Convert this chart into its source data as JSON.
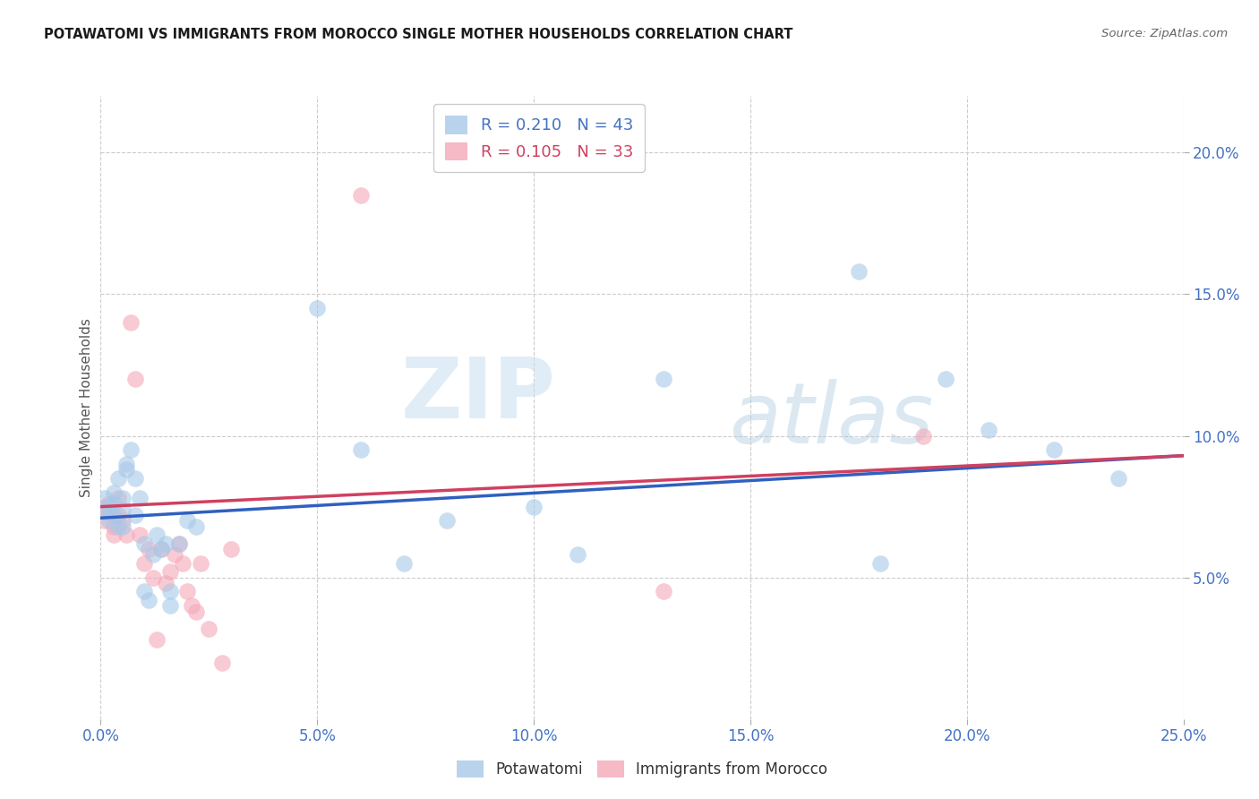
{
  "title": "POTAWATOMI VS IMMIGRANTS FROM MOROCCO SINGLE MOTHER HOUSEHOLDS CORRELATION CHART",
  "source": "Source: ZipAtlas.com",
  "ylabel_label": "Single Mother Households",
  "xlim": [
    0.0,
    0.25
  ],
  "ylim": [
    0.0,
    0.22
  ],
  "xticks": [
    0.0,
    0.05,
    0.1,
    0.15,
    0.2,
    0.25
  ],
  "yticks": [
    0.05,
    0.1,
    0.15,
    0.2
  ],
  "ytick_labels": [
    "5.0%",
    "10.0%",
    "15.0%",
    "20.0%"
  ],
  "xtick_labels": [
    "0.0%",
    "5.0%",
    "10.0%",
    "15.0%",
    "20.0%",
    "25.0%"
  ],
  "legend1_R": "0.210",
  "legend1_N": "43",
  "legend2_R": "0.105",
  "legend2_N": "33",
  "blue_color": "#a8c8e8",
  "pink_color": "#f4a8b8",
  "line_blue_color": "#3060c0",
  "line_pink_color": "#d04060",
  "axis_tick_color": "#4472c4",
  "grid_color": "#cccccc",
  "watermark_zip": "ZIP",
  "watermark_atlas": "atlas",
  "potawatomi_x": [
    0.001,
    0.001,
    0.002,
    0.002,
    0.003,
    0.003,
    0.003,
    0.004,
    0.004,
    0.005,
    0.005,
    0.005,
    0.006,
    0.006,
    0.007,
    0.008,
    0.008,
    0.009,
    0.01,
    0.01,
    0.011,
    0.012,
    0.013,
    0.014,
    0.015,
    0.016,
    0.016,
    0.018,
    0.02,
    0.022,
    0.05,
    0.06,
    0.07,
    0.08,
    0.1,
    0.11,
    0.13,
    0.175,
    0.18,
    0.195,
    0.205,
    0.22,
    0.235
  ],
  "potawatomi_y": [
    0.073,
    0.078,
    0.075,
    0.07,
    0.072,
    0.08,
    0.076,
    0.068,
    0.085,
    0.078,
    0.074,
    0.068,
    0.09,
    0.088,
    0.095,
    0.085,
    0.072,
    0.078,
    0.062,
    0.045,
    0.042,
    0.058,
    0.065,
    0.06,
    0.062,
    0.045,
    0.04,
    0.062,
    0.07,
    0.068,
    0.145,
    0.095,
    0.055,
    0.07,
    0.075,
    0.058,
    0.12,
    0.158,
    0.055,
    0.12,
    0.102,
    0.095,
    0.085
  ],
  "morocco_x": [
    0.001,
    0.001,
    0.002,
    0.002,
    0.003,
    0.003,
    0.004,
    0.004,
    0.005,
    0.006,
    0.007,
    0.008,
    0.009,
    0.01,
    0.011,
    0.012,
    0.013,
    0.014,
    0.015,
    0.016,
    0.017,
    0.018,
    0.019,
    0.02,
    0.021,
    0.022,
    0.023,
    0.025,
    0.028,
    0.03,
    0.06,
    0.13,
    0.19
  ],
  "morocco_y": [
    0.075,
    0.07,
    0.073,
    0.076,
    0.068,
    0.065,
    0.072,
    0.078,
    0.07,
    0.065,
    0.14,
    0.12,
    0.065,
    0.055,
    0.06,
    0.05,
    0.028,
    0.06,
    0.048,
    0.052,
    0.058,
    0.062,
    0.055,
    0.045,
    0.04,
    0.038,
    0.055,
    0.032,
    0.02,
    0.06,
    0.185,
    0.045,
    0.1
  ],
  "blue_line_x": [
    0.0,
    0.25
  ],
  "blue_line_y": [
    0.071,
    0.093
  ],
  "pink_line_x": [
    0.0,
    0.25
  ],
  "pink_line_y": [
    0.075,
    0.093
  ]
}
